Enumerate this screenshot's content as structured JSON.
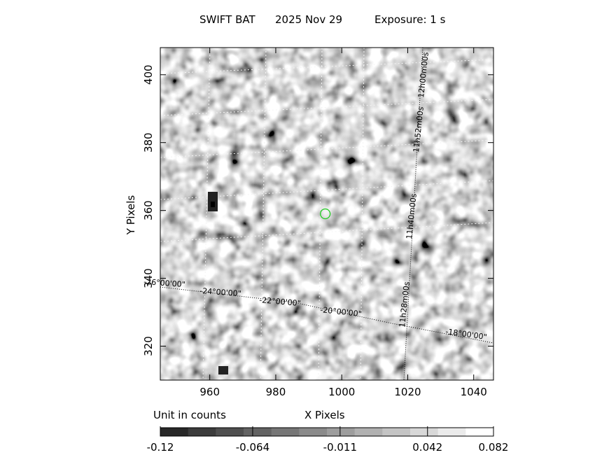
{
  "title": {
    "instrument": "SWIFT BAT",
    "date": "2025 Nov 29",
    "exposure": "Exposure: 1 s"
  },
  "axes": {
    "xlabel": "X Pixels",
    "ylabel": "Y Pixels",
    "x_ticks": [
      "960",
      "980",
      "1000",
      "1020",
      "1040"
    ],
    "x_tick_values": [
      960,
      980,
      1000,
      1020,
      1040
    ],
    "y_ticks": [
      "320",
      "340",
      "360",
      "380",
      "400"
    ],
    "y_tick_values": [
      320,
      340,
      360,
      380,
      400
    ],
    "xlim": [
      945,
      1046
    ],
    "ylim": [
      310,
      408
    ]
  },
  "coordinate_grid": {
    "ra_labels": [
      "11h28m00s",
      "11h40m00s",
      "11h52m00s",
      "12h00m00s"
    ],
    "dec_labels": [
      "-26°00'00\"",
      "-24°00'00\"",
      "-22°00'00\"",
      "-20°00'00\"",
      "-18°00'00\""
    ]
  },
  "source_marker": {
    "x": 995,
    "y": 359,
    "color": "#22cc22"
  },
  "colorbar": {
    "unit_label": "Unit in counts",
    "tick_labels": [
      "-0.12",
      "-0.064",
      "-0.011",
      "0.042",
      "0.082"
    ],
    "tick_values": [
      -0.12,
      -0.064,
      -0.011,
      0.042,
      0.082
    ],
    "range": [
      -0.12,
      0.082
    ]
  }
}
